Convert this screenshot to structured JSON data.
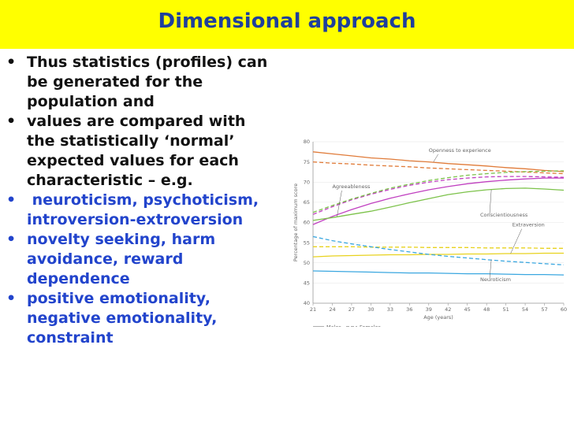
{
  "slide": {
    "title": "Dimensional approach",
    "bullets": [
      {
        "lines": [
          "Thus statistics (profiles) can",
          "be generated for the",
          "population and"
        ],
        "color": "#111111"
      },
      {
        "lines": [
          "values are compared with",
          "the statistically ‘normal’",
          "expected values for each",
          "characteristic – e.g."
        ],
        "color": "#111111"
      },
      {
        "lines": [
          " neuroticism, psychoticism,",
          "introversion-extroversion"
        ],
        "color": "#2244cc"
      },
      {
        "lines": [
          "novelty seeking, harm",
          "avoidance, reward",
          "dependence"
        ],
        "color": "#2244cc"
      },
      {
        "lines": [
          "positive emotionality,",
          "negative emotionality,",
          "constraint"
        ],
        "color": "#2244cc"
      }
    ],
    "bullet_glyph": "•"
  },
  "chart_data": {
    "type": "line",
    "ylabel": "Percentage of maximum score",
    "xlabel": "Age (years)",
    "x": [
      21,
      24,
      27,
      30,
      33,
      36,
      39,
      42,
      45,
      48,
      51,
      54,
      57,
      60
    ],
    "ylim": [
      40,
      80
    ],
    "yticks": [
      40,
      45,
      50,
      55,
      60,
      65,
      70,
      75,
      80
    ],
    "legend": {
      "males": "Males",
      "females": "Females"
    },
    "series": [
      {
        "name": "Openness to experience",
        "sex": "Males",
        "color": "#e07b39",
        "dashed": false,
        "values": [
          77.5,
          77.0,
          76.5,
          76.0,
          75.7,
          75.3,
          75.0,
          74.6,
          74.3,
          74.0,
          73.6,
          73.3,
          72.9,
          72.6
        ]
      },
      {
        "name": "Openness to experience",
        "sex": "Females",
        "color": "#e07b39",
        "dashed": true,
        "values": [
          75.0,
          74.7,
          74.5,
          74.2,
          74.0,
          73.8,
          73.5,
          73.3,
          73.1,
          72.9,
          72.7,
          72.5,
          72.3,
          72.1
        ]
      },
      {
        "name": "Agreeableness",
        "sex": "Males",
        "color": "#c040c0",
        "dashed": false,
        "values": [
          59.5,
          61.5,
          63.2,
          64.7,
          66.0,
          67.1,
          68.1,
          68.9,
          69.6,
          70.1,
          70.5,
          70.8,
          71.0,
          71.0
        ]
      },
      {
        "name": "Agreeableness",
        "sex": "Females",
        "color": "#c040c0",
        "dashed": true,
        "values": [
          62.0,
          63.9,
          65.6,
          67.0,
          68.2,
          69.2,
          70.0,
          70.6,
          71.0,
          71.3,
          71.4,
          71.4,
          71.3,
          71.2
        ]
      },
      {
        "name": "Conscientiousness",
        "sex": "Males",
        "color": "#7cc24a",
        "dashed": false,
        "values": [
          60.5,
          61.2,
          62.0,
          62.8,
          63.8,
          64.9,
          65.9,
          66.9,
          67.6,
          68.1,
          68.4,
          68.5,
          68.3,
          68.0
        ]
      },
      {
        "name": "Conscientiousness",
        "sex": "Females",
        "color": "#7cc24a",
        "dashed": true,
        "values": [
          62.5,
          64.2,
          65.8,
          67.2,
          68.5,
          69.5,
          70.4,
          71.1,
          71.7,
          72.1,
          72.4,
          72.6,
          72.7,
          72.8
        ]
      },
      {
        "name": "Extraversion",
        "sex": "Males",
        "color": "#e8d21e",
        "dashed": false,
        "values": [
          51.5,
          51.7,
          51.8,
          51.9,
          52.0,
          52.0,
          52.1,
          52.1,
          52.2,
          52.2,
          52.3,
          52.3,
          52.4,
          52.4
        ]
      },
      {
        "name": "Extraversion",
        "sex": "Females",
        "color": "#e8d21e",
        "dashed": true,
        "values": [
          54.0,
          54.0,
          54.0,
          53.9,
          53.9,
          53.9,
          53.8,
          53.8,
          53.8,
          53.7,
          53.7,
          53.7,
          53.6,
          53.6
        ]
      },
      {
        "name": "Neuroticism",
        "sex": "Males",
        "color": "#3aa7e0",
        "dashed": false,
        "values": [
          48.0,
          47.9,
          47.8,
          47.7,
          47.6,
          47.5,
          47.5,
          47.4,
          47.3,
          47.3,
          47.2,
          47.1,
          47.1,
          47.0
        ]
      },
      {
        "name": "Neuroticism",
        "sex": "Females",
        "color": "#3aa7e0",
        "dashed": true,
        "values": [
          56.5,
          55.5,
          54.7,
          54.0,
          53.3,
          52.7,
          52.1,
          51.6,
          51.2,
          50.8,
          50.4,
          50.1,
          49.8,
          49.5
        ]
      }
    ],
    "annotations": [
      {
        "text": "Openness to experience",
        "x": 39,
        "y": 77.5,
        "series": 0
      },
      {
        "text": "Agreeableness",
        "x": 24,
        "y": 68.5,
        "series": 2
      },
      {
        "text": "Conscientiousness",
        "x": 47,
        "y": 61.5,
        "series": 4
      },
      {
        "text": "Extraversion",
        "x": 52,
        "y": 59,
        "series": 6
      },
      {
        "text": "Neuroticism",
        "x": 47,
        "y": 45.5,
        "series": 9
      }
    ]
  }
}
